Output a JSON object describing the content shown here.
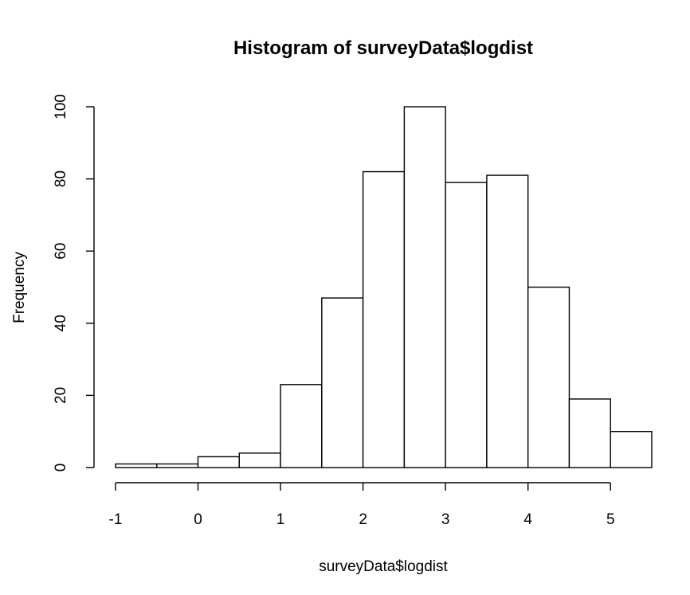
{
  "chart_data": {
    "type": "bar",
    "title": "Histogram of surveyData$logdist",
    "xlabel": "surveyData$logdist",
    "ylabel": "Frequency",
    "bin_edges": [
      -1,
      -0.5,
      0,
      0.5,
      1,
      1.5,
      2,
      2.5,
      3,
      3.5,
      4,
      4.5,
      5,
      5.5
    ],
    "values": [
      1,
      1,
      3,
      4,
      23,
      47,
      82,
      100,
      79,
      81,
      50,
      19,
      10
    ],
    "xlim": [
      -1,
      5.5
    ],
    "ylim": [
      0,
      100
    ],
    "x_ticks": [
      -1,
      0,
      1,
      2,
      3,
      4,
      5
    ],
    "y_ticks": [
      0,
      20,
      40,
      60,
      80,
      100
    ],
    "grid": false,
    "legend": "none"
  }
}
